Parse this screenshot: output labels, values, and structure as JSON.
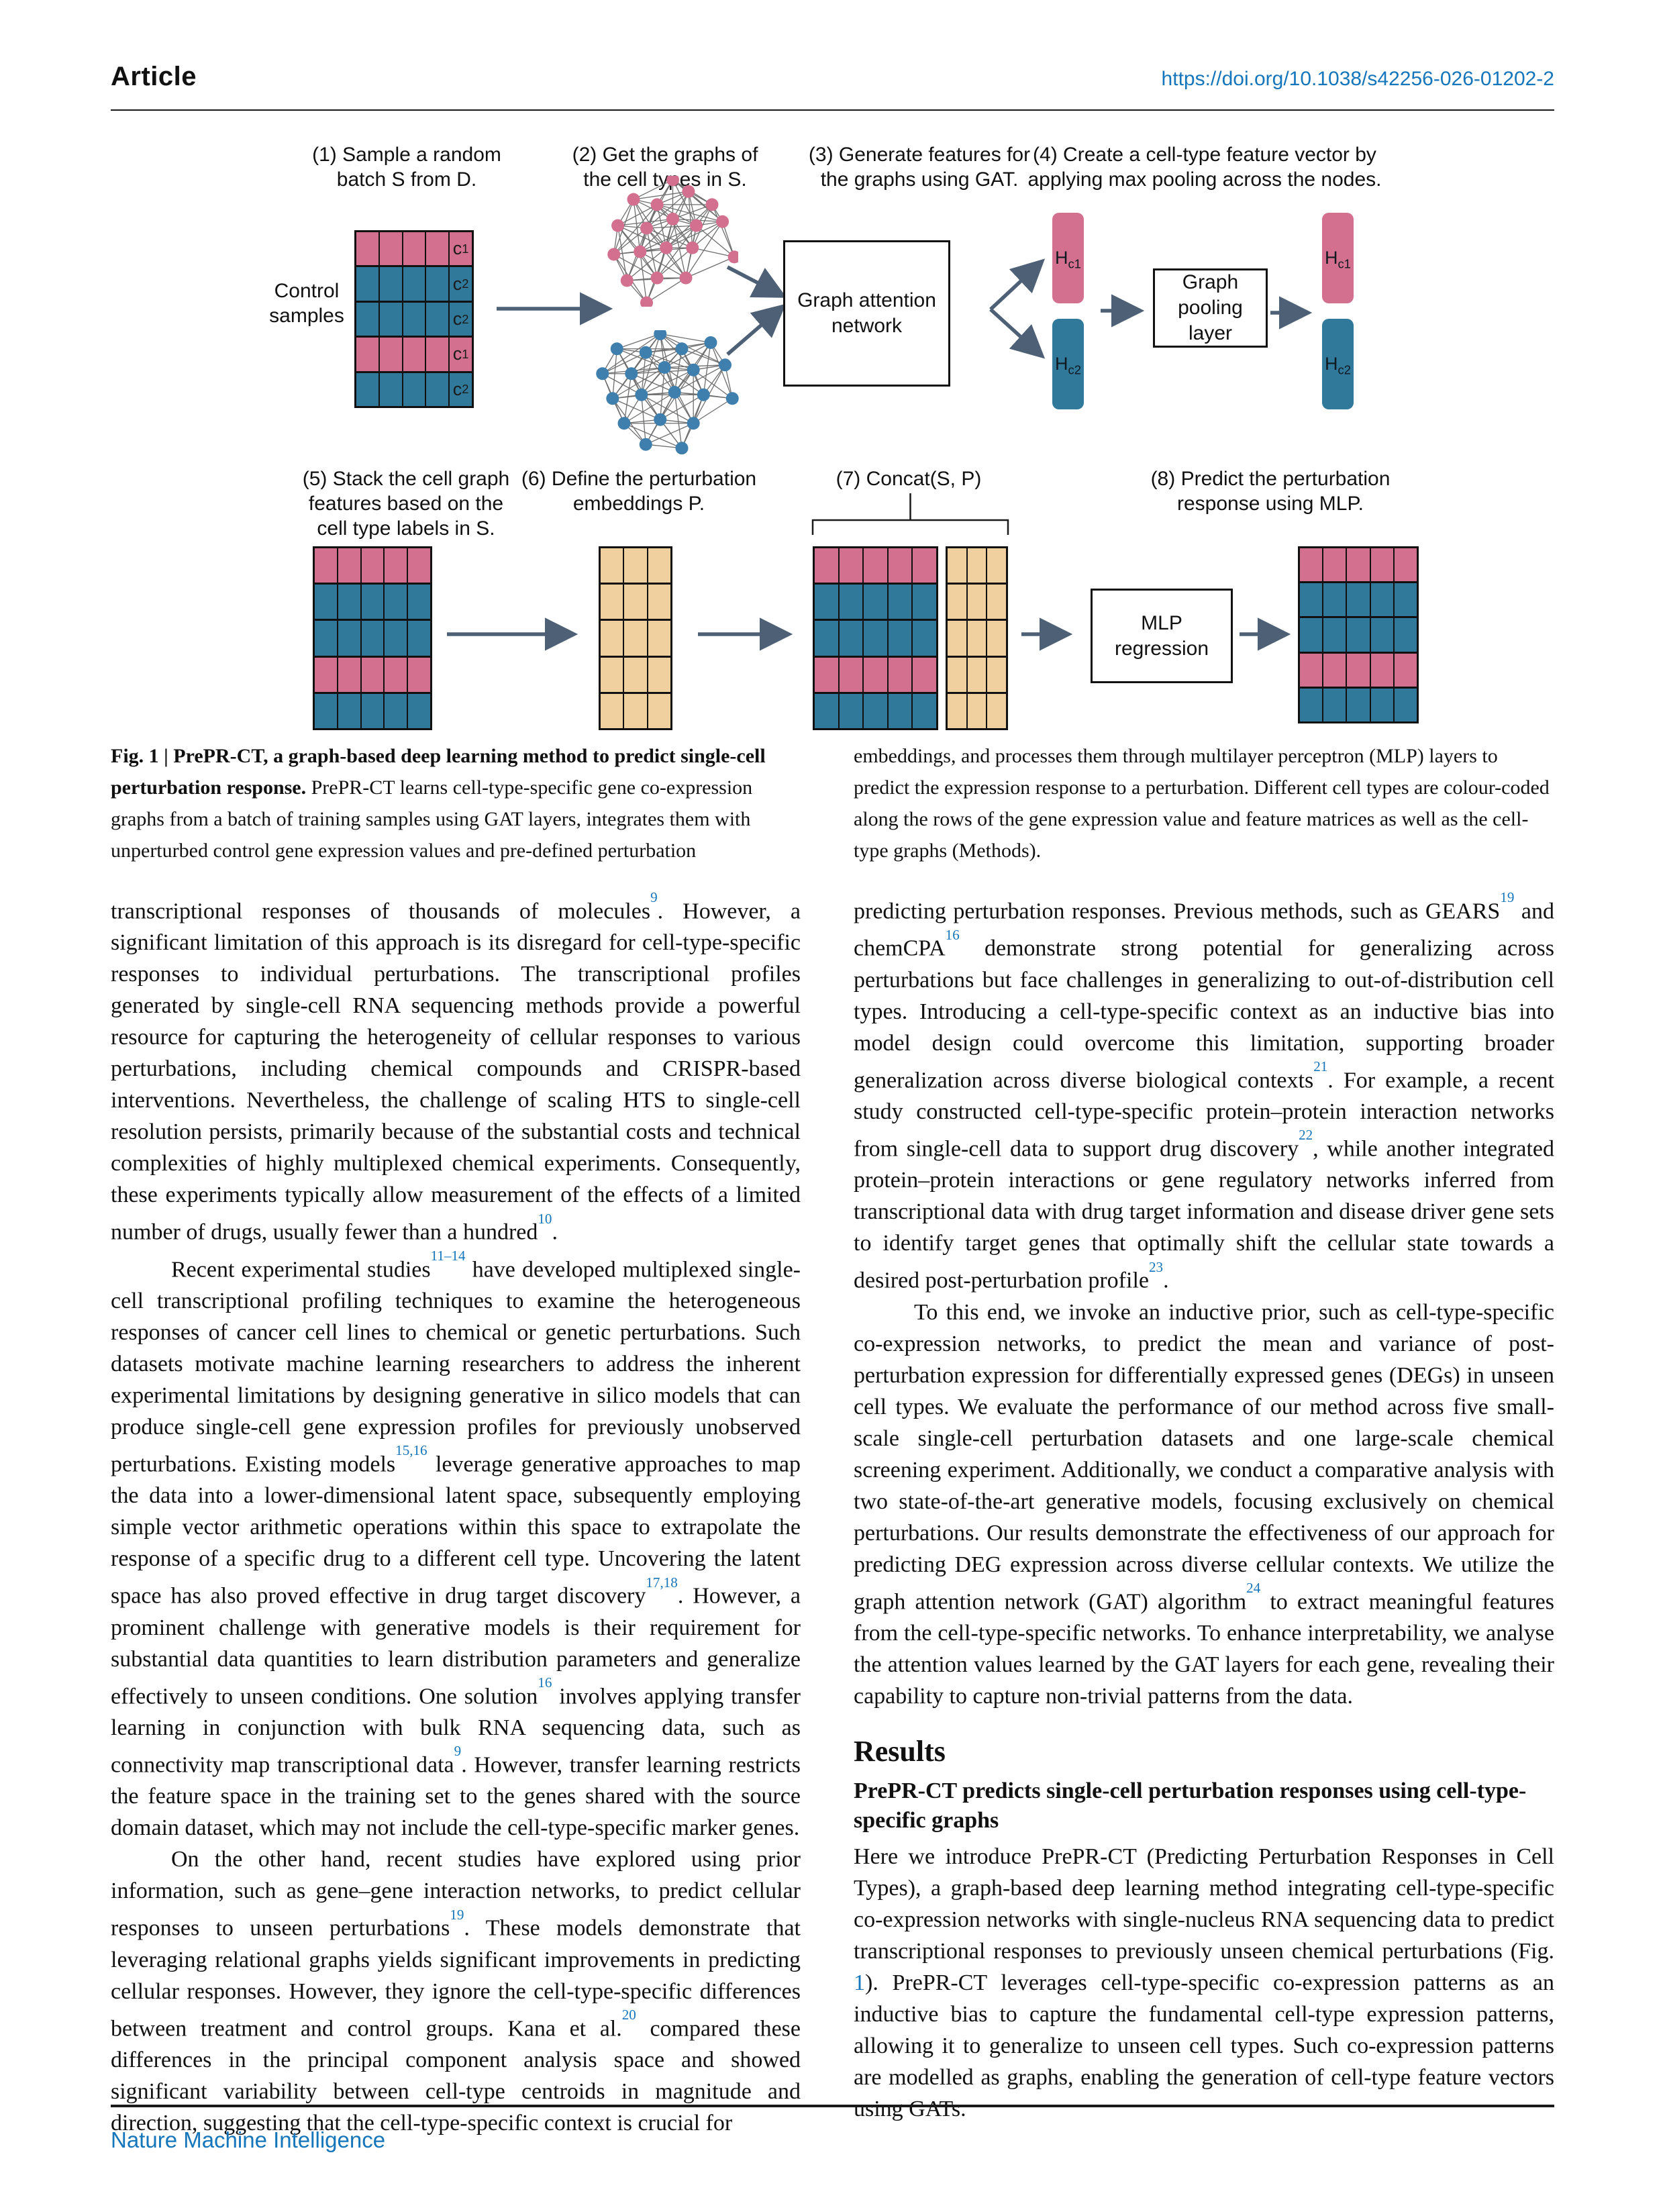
{
  "header": {
    "article_label": "Article",
    "doi": "https://doi.org/10.1038/s42256-026-01202-2"
  },
  "footer": {
    "journal": "Nature Machine Intelligence"
  },
  "colors": {
    "pink": "#D4708F",
    "teal": "#30799B",
    "tan": "#F1D0A0",
    "graph_blue": "#3F7FAE",
    "arrow": "#4D6076",
    "link": "#1576BC"
  },
  "figure": {
    "steps": [
      {
        "lines": [
          "(1) Sample a random",
          "batch S from D."
        ]
      },
      {
        "lines": [
          "(2) Get the graphs of",
          "the cell types in S."
        ]
      },
      {
        "lines": [
          "(3) Generate features for",
          "the graphs using GAT."
        ]
      },
      {
        "lines": [
          "(4) Create a cell-type feature vector by",
          "applying max pooling across the nodes."
        ]
      },
      {
        "lines": [
          "(5) Stack the cell graph",
          "features based on the",
          "cell type labels in S."
        ]
      },
      {
        "lines": [
          "(6) Define the perturbation",
          "embeddings P."
        ]
      },
      {
        "lines": [
          "(7) Concat(S, P)"
        ]
      },
      {
        "lines": [
          "(8) Predict the perturbation",
          "response using MLP."
        ]
      }
    ],
    "control_label_lines": [
      "Control",
      "samples"
    ],
    "gat_box_lines": [
      "Graph attention",
      "network"
    ],
    "pool_box_lines": [
      "Graph",
      "pooling",
      "layer"
    ],
    "mlp_box_lines": [
      "MLP",
      "regression"
    ],
    "matrix_row_types": [
      "c1",
      "c2",
      "c2",
      "c1",
      "c2"
    ],
    "matrix1_labels": [
      {
        "b": "c",
        "s": "1"
      },
      {
        "b": "c",
        "s": "2"
      },
      {
        "b": "c",
        "s": "2"
      },
      {
        "b": "c",
        "s": "1"
      },
      {
        "b": "c",
        "s": "2"
      }
    ],
    "pill_labels": [
      {
        "b": "H",
        "s": "c1"
      },
      {
        "b": "H",
        "s": "c2"
      },
      {
        "b": "H",
        "s": "c1"
      },
      {
        "b": "H",
        "s": "c2"
      }
    ]
  },
  "caption": {
    "left_bold": "Fig. 1 | PrePR-CT, a graph-based deep learning method to predict single-cell perturbation response.",
    "left_rest": " PrePR-CT learns cell-type-specific gene co-expression graphs from a batch of training samples using GAT layers, integrates them with unperturbed control gene expression values and pre-defined perturbation",
    "right": "embeddings, and processes them through multilayer perceptron (MLP) layers to predict the expression response to a perturbation. Different cell types are colour-coded along the rows of the gene expression value and feature matrices as well as the cell-type graphs (Methods)."
  },
  "body": {
    "left_paragraphs": [
      {
        "indent": false,
        "segments": [
          {
            "t": "transcriptional responses of thousands of molecules"
          },
          {
            "s": "9"
          },
          {
            "t": ". However, a significant limitation of this approach is its disregard for cell-type-specific responses to individual perturbations. The transcriptional profiles generated by single-cell RNA sequencing methods provide a powerful resource for capturing the heterogeneity of cellular responses to various perturbations, including chemical compounds and CRISPR-based interventions. Nevertheless, the challenge of scaling HTS to single-cell resolution persists, primarily because of the substantial costs and technical complexities of highly multiplexed chemical experiments. Consequently, these experiments typically allow measurement of the effects of a limited number of drugs, usually fewer than a hundred"
          },
          {
            "s": "10"
          },
          {
            "t": "."
          }
        ]
      },
      {
        "indent": true,
        "segments": [
          {
            "t": "Recent experimental studies"
          },
          {
            "s": "11–14"
          },
          {
            "t": " have developed multiplexed single-cell transcriptional profiling techniques to examine the heterogeneous responses of cancer cell lines to chemical or genetic perturbations. Such datasets motivate machine learning researchers to address the inherent experimental limitations by designing generative in silico models that can produce single-cell gene expression profiles for previously unobserved perturbations. Existing models"
          },
          {
            "s": "15,16"
          },
          {
            "t": " leverage generative approaches to map the data into a lower-dimensional latent space, subsequently employing simple vector arithmetic operations within this space to extrapolate the response of a specific drug to a different cell type. Uncovering the latent space has also proved effective in drug target discovery"
          },
          {
            "s": "17,18"
          },
          {
            "t": ". However, a prominent challenge with generative models is their requirement for substantial data quantities to learn distribution parameters and generalize effectively to unseen conditions. One solution"
          },
          {
            "s": "16"
          },
          {
            "t": " involves applying transfer learning in conjunction with bulk RNA sequencing data, such as connectivity map transcriptional data"
          },
          {
            "s": "9"
          },
          {
            "t": ". However, transfer learning restricts the feature space in the training set to the genes shared with the source domain dataset, which may not include the cell-type-specific marker genes."
          }
        ]
      },
      {
        "indent": true,
        "segments": [
          {
            "t": "On the other hand, recent studies have explored using prior information, such as gene–gene interaction networks, to predict cellular responses to unseen perturbations"
          },
          {
            "s": "19"
          },
          {
            "t": ". These models demonstrate that leveraging relational graphs yields significant improvements in predicting cellular responses. However, they ignore the cell-type-specific differences between treatment and control groups. Kana et al."
          },
          {
            "s": "20"
          },
          {
            "t": " compared these differences in the principal component analysis space and showed significant variability between cell-type centroids in magnitude and direction, suggesting that the cell-type-specific context is crucial for"
          }
        ]
      }
    ],
    "right_paragraphs": [
      {
        "indent": false,
        "segments": [
          {
            "t": "predicting perturbation responses. Previous methods, such as GEARS"
          },
          {
            "s": "19"
          },
          {
            "t": " and chemCPA"
          },
          {
            "s": "16"
          },
          {
            "t": " demonstrate strong potential for generalizing across perturbations but face challenges in generalizing to out-of-distribution cell types. Introducing a cell-type-specific context as an inductive bias into model design could overcome this limitation, supporting broader generalization across diverse biological contexts"
          },
          {
            "s": "21"
          },
          {
            "t": ". For example, a recent study constructed cell-type-specific protein–protein interaction networks from single-cell data to support drug discovery"
          },
          {
            "s": "22"
          },
          {
            "t": ", while another integrated protein–protein interactions or gene regulatory networks inferred from transcriptional data with drug target information and disease driver gene sets to identify target genes that optimally shift the cellular state towards a desired post-perturbation profile"
          },
          {
            "s": "23"
          },
          {
            "t": "."
          }
        ]
      },
      {
        "indent": true,
        "segments": [
          {
            "t": "To this end, we invoke an inductive prior, such as cell-type-specific co-expression networks, to predict the mean and variance of post-perturbation expression for differentially expressed genes (DEGs) in unseen cell types. We evaluate the performance of our method across five small-scale single-cell perturbation datasets and one large-scale chemical screening experiment. Additionally, we conduct a comparative analysis with two state-of-the-art generative models, focusing exclusively on chemical perturbations. Our results demonstrate the effectiveness of our approach for predicting DEG expression across diverse cellular contexts. We utilize the graph attention network (GAT) algorithm"
          },
          {
            "s": "24"
          },
          {
            "t": " to extract meaningful features from the cell-type-specific networks. To enhance interpretability, we analyse the attention values learned by the GAT layers for each gene, revealing their capability to capture non-trivial patterns from the data."
          }
        ]
      }
    ],
    "results_heading": "Results",
    "sub_heading": "PrePR-CT predicts single-cell perturbation responses using cell-type-specific graphs",
    "results_paragraphs": [
      {
        "indent": false,
        "segments": [
          {
            "t": "Here we introduce PrePR-CT (Predicting Perturbation Responses in Cell Types), a graph-based deep learning method integrating cell-type-specific co-expression networks with single-nucleus RNA sequencing data to predict transcriptional responses to previously unseen chemical perturbations (Fig. "
          },
          {
            "l": "1"
          },
          {
            "t": "). PrePR-CT leverages cell-type-specific co-expression patterns as an inductive bias to capture the fundamental cell-type expression patterns, allowing it to generalize to unseen cell types. Such co-expression patterns are modelled as graphs, enabling the generation of cell-type feature vectors using GATs."
          }
        ]
      }
    ]
  }
}
